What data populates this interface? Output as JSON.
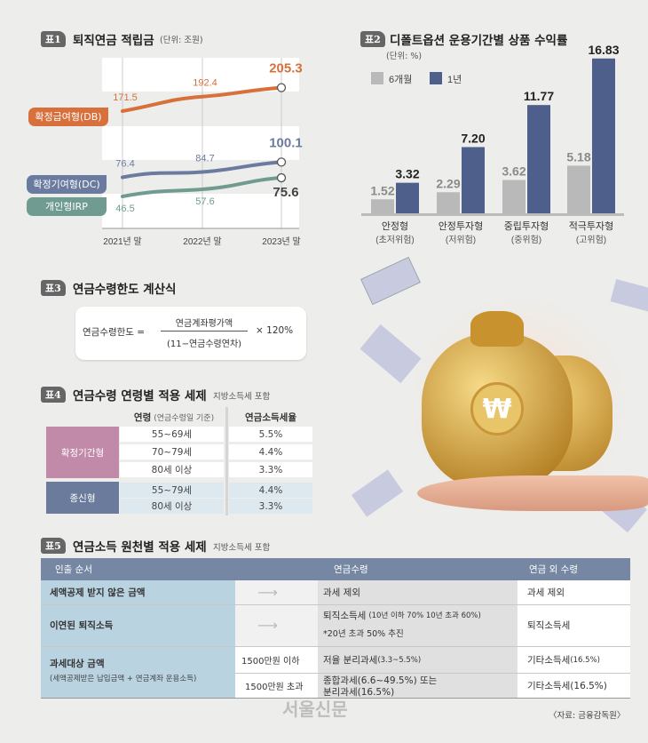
{
  "chart_data": [
    {
      "type": "line",
      "badge": "표1",
      "title": "퇴직연금 적립금",
      "unit": "(단위: 조원)",
      "categories": [
        "2021년 말",
        "2022년 말",
        "2023년 말"
      ],
      "series": [
        {
          "name": "확정급여형(DB)",
          "values": [
            171.5,
            192.4,
            205.3
          ],
          "color": "#d8703c"
        },
        {
          "name": "확정기여형(DC)",
          "values": [
            76.4,
            84.7,
            100.1
          ],
          "color": "#6b7ba0"
        },
        {
          "name": "개인형IRP",
          "values": [
            46.5,
            57.6,
            75.6
          ],
          "color": "#6f9b91"
        }
      ],
      "axis": "broken",
      "grid": "alternating-bands"
    },
    {
      "type": "bar",
      "badge": "표2",
      "title": "디폴트옵션 운용기간별 상품 수익률",
      "unit": "(단위: %)",
      "categories": [
        {
          "name": "안정형",
          "risk": "(초저위험)"
        },
        {
          "name": "안정투자형",
          "risk": "(저위험)"
        },
        {
          "name": "중립투자형",
          "risk": "(중위험)"
        },
        {
          "name": "적극투자형",
          "risk": "(고위험)"
        }
      ],
      "series": [
        {
          "name": "6개월",
          "values": [
            1.52,
            2.29,
            3.62,
            5.18
          ],
          "color": "#b9b9b9",
          "labels": [
            "1.52",
            "2.29",
            "3.62",
            "5.18"
          ]
        },
        {
          "name": "1년",
          "values": [
            3.32,
            7.2,
            11.77,
            16.83
          ],
          "color": "#4e5f8c",
          "labels": [
            "3.32",
            "7.20",
            "11.77",
            "16.83"
          ]
        }
      ],
      "legend": "top-left"
    }
  ],
  "table3": {
    "badge": "표3",
    "title": "연금수령한도 계산식",
    "lhs": "연금수령한도 =",
    "numerator": "연금계좌평가액",
    "denominator": "(11−연금수령연차)",
    "multiplier": "× 120%"
  },
  "table4": {
    "badge": "표4",
    "title": "연금수령 연령별 적용 세제",
    "note": "지방소득세 포함",
    "head_age": "연령",
    "head_age_note": "(연금수령일 기준)",
    "head_rate": "연금소득세율",
    "groups": [
      {
        "name": "확정기간형",
        "rows": [
          [
            "55~69세",
            "5.5%"
          ],
          [
            "70~79세",
            "4.4%"
          ],
          [
            "80세 이상",
            "3.3%"
          ]
        ]
      },
      {
        "name": "종신형",
        "rows": [
          [
            "55~79세",
            "4.4%"
          ],
          [
            "80세 이상",
            "3.3%"
          ]
        ]
      }
    ]
  },
  "table5": {
    "badge": "표5",
    "title": "연금소득 원천별 적용 세제",
    "note": "지방소득세 포함",
    "headers": [
      "인출 순서",
      "연금수령",
      "연금 외 수령"
    ],
    "r1": {
      "label": "세액공제 받지 않은 금액",
      "pension": "과세 제외",
      "other": "과세 제외"
    },
    "r2": {
      "label": "이연된 퇴직소득",
      "pension": "퇴직소득세",
      "pension_note": "(10년 이하 70% 10년 초과 60%)",
      "pension2": "*20년 초과 50% 추진",
      "other": "퇴직소득세"
    },
    "r3": {
      "label": "과세대상 금액",
      "label_note": "(세액공제받은 납입금액 + 연금계좌 운용소득)",
      "a_cond": "1500만원 이하",
      "a_pension": "저율 분리과세",
      "a_pension_note": "(3.3~5.5%)",
      "a_other": "기타소득세",
      "a_other_note": "(16.5%)",
      "b_cond": "1500만원 초과",
      "b_pension1": "종합과세(6.6~49.5%) 또는",
      "b_pension2": "분리과세(16.5%)",
      "b_other": "기타소득세(16.5%)"
    }
  },
  "source": "〈자료: 금융감독원〉",
  "watermark": "서울신문"
}
